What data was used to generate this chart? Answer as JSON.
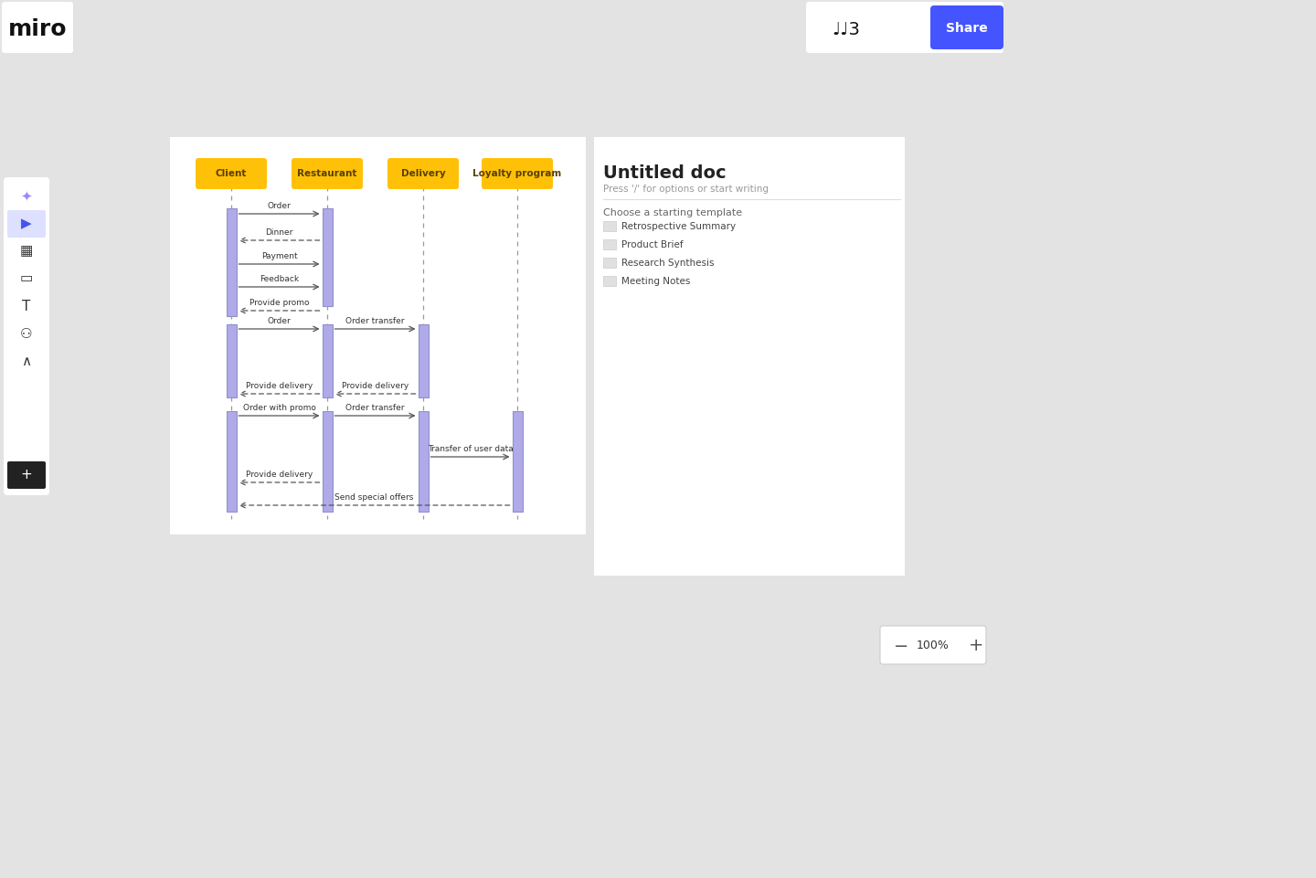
{
  "bg_color": "#e3e3e3",
  "diagram_bg": "#ffffff",
  "right_panel_bg": "#ffffff",
  "actors": [
    "Client",
    "Restaurant",
    "Delivery",
    "Loyalty program"
  ],
  "actor_box_color": "#FFC107",
  "actor_text_color": "#5a4000",
  "lifeline_color": "#999999",
  "activation_color": "#b0aae8",
  "activation_border": "#9090cc",
  "title_text": "Untitled doc",
  "subtitle_text": "Press '/' for options or start writing",
  "template_title": "Choose a starting template",
  "templates": [
    "Retrospective Summary",
    "Product Brief",
    "Research Synthesis",
    "Meeting Notes"
  ]
}
